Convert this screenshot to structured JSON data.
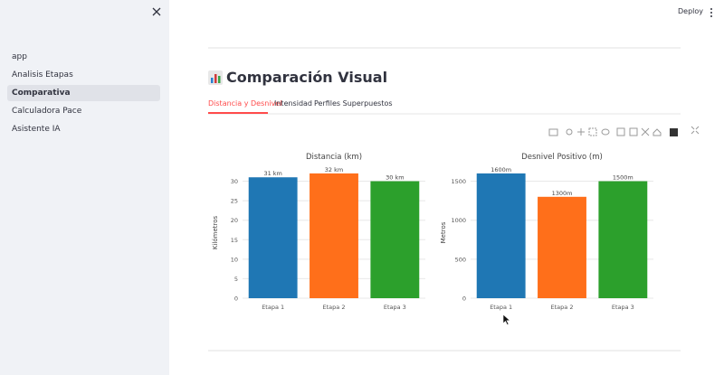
{
  "sidebar": {
    "items": [
      "app",
      "Analisis Etapas",
      "Comparativa",
      "Calculadora Pace",
      "Asistente IA"
    ],
    "selected": 2
  },
  "header": {
    "deploy": "Deploy"
  },
  "title": "Comparación Visual",
  "tabs": {
    "items": [
      "Distancia y Desnivel",
      "Intensidad",
      "Perfiles Superpuestos"
    ],
    "selected": 0
  },
  "chart_data": [
    {
      "type": "bar",
      "title": "Distancia (km)",
      "y_label": "Kilómetros",
      "categories": [
        "Etapa 1",
        "Etapa 2",
        "Etapa 3"
      ],
      "values": [
        31,
        32,
        30
      ],
      "value_labels": [
        "31 km",
        "32 km",
        "30 km"
      ],
      "colors": [
        "#1f77b4",
        "#ff6f1a",
        "#2ca02c"
      ],
      "ylim": [
        0,
        33.6
      ],
      "yticks": [
        0,
        5,
        10,
        15,
        20,
        25,
        30
      ],
      "grid": true
    },
    {
      "type": "bar",
      "title": "Desnivel Positivo (m)",
      "y_label": "Metros",
      "categories": [
        "Etapa 1",
        "Etapa 2",
        "Etapa 3"
      ],
      "values": [
        1600,
        1300,
        1500
      ],
      "value_labels": [
        "1600m",
        "1300m",
        "1500m"
      ],
      "colors": [
        "#1f77b4",
        "#ff6f1a",
        "#2ca02c"
      ],
      "ylim": [
        0,
        1680
      ],
      "yticks": [
        0,
        500,
        1000,
        1500
      ],
      "grid": true
    }
  ]
}
